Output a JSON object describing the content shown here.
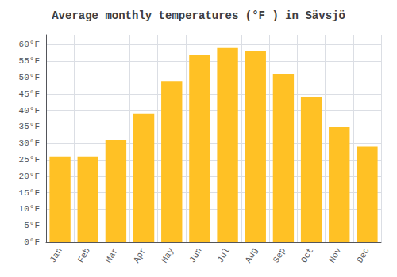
{
  "chart_data": {
    "type": "bar",
    "title": "Average monthly temperatures (°F ) in Sävsjö",
    "categories": [
      "Jan",
      "Feb",
      "Mar",
      "Apr",
      "May",
      "Jun",
      "Jul",
      "Aug",
      "Sep",
      "Oct",
      "Nov",
      "Dec"
    ],
    "values": [
      26,
      26,
      31,
      39,
      49,
      57,
      59,
      58,
      51,
      44,
      35,
      29
    ],
    "color": "#FFC125",
    "ylim": [
      0,
      63
    ],
    "yticks": [
      {
        "value": 0,
        "label": "0°F"
      },
      {
        "value": 5,
        "label": "5°F"
      },
      {
        "value": 10,
        "label": "10°F"
      },
      {
        "value": 15,
        "label": "15°F"
      },
      {
        "value": 20,
        "label": "20°F"
      },
      {
        "value": 25,
        "label": "25°F"
      },
      {
        "value": 30,
        "label": "30°F"
      },
      {
        "value": 35,
        "label": "35°F"
      },
      {
        "value": 40,
        "label": "40°F"
      },
      {
        "value": 45,
        "label": "45°F"
      },
      {
        "value": 50,
        "label": "50°F"
      },
      {
        "value": 55,
        "label": "55°F"
      },
      {
        "value": 60,
        "label": "60°F"
      }
    ],
    "grid": true
  }
}
